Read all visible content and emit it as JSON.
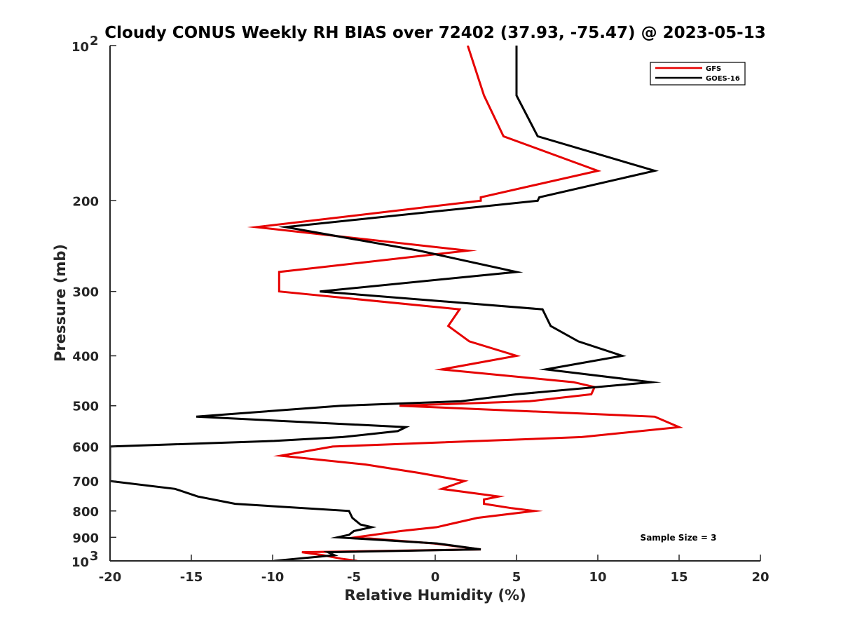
{
  "chart_data": {
    "type": "line",
    "title": "Cloudy CONUS Weekly RH BIAS over 72402 (37.93, -75.47) @ 2023-05-13",
    "xlabel": "Relative Humidity (%)",
    "ylabel": "Pressure (mb)",
    "xlim": [
      -20,
      20
    ],
    "ylim": [
      100,
      1000
    ],
    "y_scale": "log",
    "y_reversed": true,
    "grid": false,
    "legend_position": "top-right",
    "x_ticks": [
      -20,
      -15,
      -10,
      -5,
      0,
      5,
      10,
      15,
      20
    ],
    "x_tick_labels": [
      "-20",
      "-15",
      "-10",
      "-5",
      "0",
      "5",
      "10",
      "15",
      "20"
    ],
    "y_ticks": [
      200,
      300,
      400,
      500,
      600,
      700,
      800,
      900
    ],
    "y_tick_labels": [
      "200",
      "300",
      "400",
      "500",
      "600",
      "700",
      "800",
      "900"
    ],
    "y_decade_ticks": [
      {
        "value": 100,
        "base": "10",
        "exp": "2"
      },
      {
        "value": 1000,
        "base": "10",
        "exp": "3"
      }
    ],
    "series": [
      {
        "name": "GFS",
        "color": "#e60000",
        "points": [
          [
            2.0,
            100
          ],
          [
            3.0,
            125
          ],
          [
            4.2,
            150
          ],
          [
            10.0,
            175
          ],
          [
            2.8,
            197
          ],
          [
            2.8,
            200
          ],
          [
            -11.0,
            225
          ],
          [
            2.0,
            250
          ],
          [
            -9.6,
            275
          ],
          [
            -9.6,
            300
          ],
          [
            1.5,
            325
          ],
          [
            0.8,
            350
          ],
          [
            2.1,
            375
          ],
          [
            5.0,
            400
          ],
          [
            0.4,
            425
          ],
          [
            8.5,
            450
          ],
          [
            9.8,
            460
          ],
          [
            9.6,
            475
          ],
          [
            5.8,
            490
          ],
          [
            -2.2,
            500
          ],
          [
            13.5,
            525
          ],
          [
            15.0,
            550
          ],
          [
            9.0,
            575
          ],
          [
            -6.3,
            600
          ],
          [
            -9.5,
            625
          ],
          [
            -4.3,
            650
          ],
          [
            -1.0,
            675
          ],
          [
            1.8,
            700
          ],
          [
            0.4,
            725
          ],
          [
            3.9,
            750
          ],
          [
            3.0,
            760
          ],
          [
            3.0,
            775
          ],
          [
            4.7,
            790
          ],
          [
            6.1,
            800
          ],
          [
            2.6,
            825
          ],
          [
            0.8,
            850
          ],
          [
            0.1,
            860
          ],
          [
            -2.1,
            875
          ],
          [
            -4.9,
            900
          ],
          [
            -0.1,
            925
          ],
          [
            2.8,
            950
          ],
          [
            -8.2,
            962
          ],
          [
            -6.9,
            975
          ],
          [
            -5.8,
            990
          ],
          [
            -4.8,
            1000
          ]
        ]
      },
      {
        "name": "GOES-16",
        "color": "#000000",
        "points": [
          [
            5.0,
            100
          ],
          [
            5.0,
            125
          ],
          [
            6.3,
            150
          ],
          [
            13.5,
            175
          ],
          [
            6.4,
            197
          ],
          [
            6.3,
            200
          ],
          [
            -9.2,
            225
          ],
          [
            -1.0,
            250
          ],
          [
            5.0,
            275
          ],
          [
            -7.1,
            300
          ],
          [
            6.6,
            325
          ],
          [
            7.1,
            350
          ],
          [
            8.8,
            375
          ],
          [
            11.5,
            400
          ],
          [
            6.8,
            425
          ],
          [
            13.3,
            450
          ],
          [
            5.0,
            475
          ],
          [
            1.6,
            490
          ],
          [
            -5.8,
            500
          ],
          [
            -14.7,
            525
          ],
          [
            -1.8,
            550
          ],
          [
            -2.3,
            560
          ],
          [
            -5.7,
            575
          ],
          [
            -9.9,
            585
          ],
          [
            -20.0,
            600
          ],
          [
            -20.0,
            700
          ],
          [
            -16.0,
            725
          ],
          [
            -14.6,
            750
          ],
          [
            -12.3,
            775
          ],
          [
            -5.3,
            800
          ],
          [
            -5.1,
            825
          ],
          [
            -4.6,
            850
          ],
          [
            -3.9,
            860
          ],
          [
            -5.0,
            875
          ],
          [
            -5.3,
            890
          ],
          [
            -6.0,
            900
          ],
          [
            0.1,
            925
          ],
          [
            2.8,
            950
          ],
          [
            -6.6,
            962
          ],
          [
            -6.2,
            975
          ],
          [
            -9.9,
            1000
          ]
        ]
      }
    ],
    "annotations": [
      {
        "text": "Sample Size = 3"
      }
    ]
  }
}
